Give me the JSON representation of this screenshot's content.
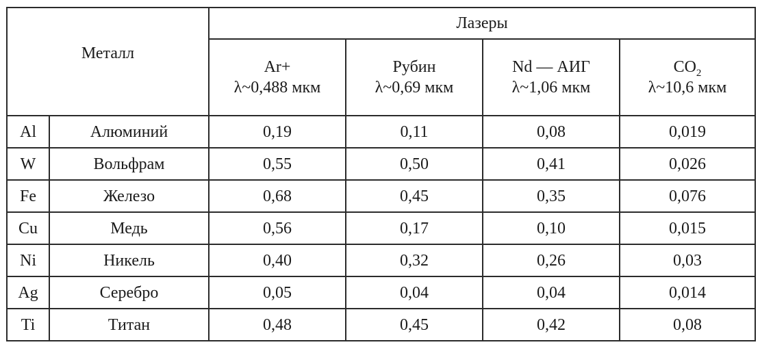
{
  "table": {
    "metal_header": "Металл",
    "lasers_header": "Лазеры",
    "lasers": [
      {
        "name": "Ar+",
        "name_sub": "",
        "wavelength": "λ~0,488 мкм"
      },
      {
        "name": "Рубин",
        "name_sub": "",
        "wavelength": "λ~0,69 мкм"
      },
      {
        "name": "Nd — АИГ",
        "name_sub": "",
        "wavelength": "λ~1,06 мкм"
      },
      {
        "name": "CO",
        "name_sub": "2",
        "wavelength": "λ~10,6 мкм"
      }
    ],
    "rows": [
      {
        "symbol": "Al",
        "metal": "Алюминий",
        "values": [
          "0,19",
          "0,11",
          "0,08",
          "0,019"
        ]
      },
      {
        "symbol": "W",
        "metal": "Вольфрам",
        "values": [
          "0,55",
          "0,50",
          "0,41",
          "0,026"
        ]
      },
      {
        "symbol": "Fe",
        "metal": "Железо",
        "values": [
          "0,68",
          "0,45",
          "0,35",
          "0,076"
        ]
      },
      {
        "symbol": "Cu",
        "metal": "Медь",
        "values": [
          "0,56",
          "0,17",
          "0,10",
          "0,015"
        ]
      },
      {
        "symbol": "Ni",
        "metal": "Никель",
        "values": [
          "0,40",
          "0,32",
          "0,26",
          "0,03"
        ]
      },
      {
        "symbol": "Ag",
        "metal": "Серебро",
        "values": [
          "0,05",
          "0,04",
          "0,04",
          "0,014"
        ]
      },
      {
        "symbol": "Ti",
        "metal": "Титан",
        "values": [
          "0,48",
          "0,45",
          "0,42",
          "0,08"
        ]
      }
    ]
  }
}
